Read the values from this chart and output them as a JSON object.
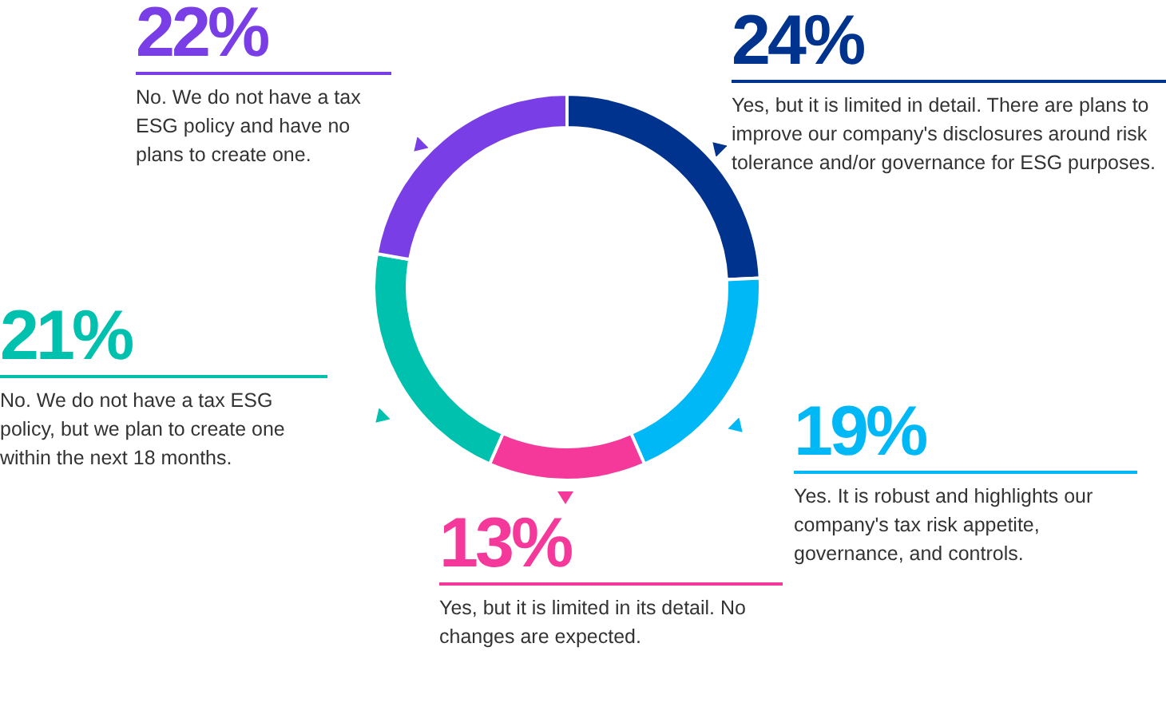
{
  "chart_data": {
    "type": "donut",
    "categories": [
      "Yes, but it is limited in detail. There are plans to improve our company's disclosures around risk tolerance and/or governance for ESG purposes.",
      "Yes. It is robust and highlights our company's tax risk appetite, governance, and controls.",
      "Yes, but it is limited in its detail. No changes are expected.",
      "No. We do not have a tax ESG policy, but we plan to create one within the next 18 months.",
      "No. We do not have a tax ESG policy and have no plans to create one."
    ],
    "values": [
      24,
      19,
      13,
      21,
      22
    ],
    "value_labels": [
      "24%",
      "19%",
      "13%",
      "21%",
      "22%"
    ],
    "colors": [
      "#00338d",
      "#00b8f5",
      "#f5399b",
      "#00c1ae",
      "#7a3ee6"
    ]
  }
}
